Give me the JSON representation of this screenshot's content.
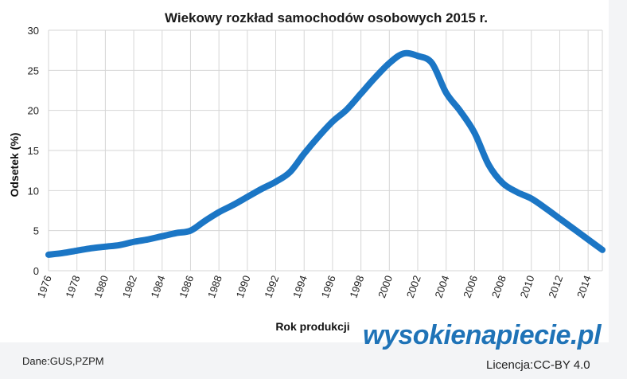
{
  "source_text": "Dane:GUS,PZPM",
  "license_text": "Licencja:CC-BY 4.0",
  "brand_text": "wysokienapiecie.pl",
  "colors": {
    "line": "#1b76c5",
    "grid": "#d6d6d6",
    "brand": "#1f73b7"
  },
  "chart_data": {
    "type": "line",
    "title": "Wiekowy rozkład samochodów osobowych 2015 r.",
    "xlabel": "Rok produkcji",
    "ylabel": "Odsetek (%)",
    "xlim": [
      1976,
      2015
    ],
    "ylim": [
      0,
      30
    ],
    "x_ticks": [
      "1976",
      "1978",
      "1980",
      "1982",
      "1984",
      "1986",
      "1988",
      "1990",
      "1992",
      "1994",
      "1996",
      "1998",
      "2000",
      "2002",
      "2004",
      "2006",
      "2008",
      "2010",
      "2012",
      "2014"
    ],
    "y_ticks": [
      "0",
      "5",
      "10",
      "15",
      "20",
      "25",
      "30"
    ],
    "grid": true,
    "legend": "none",
    "series": [
      {
        "x": [
          1976,
          1977,
          1978,
          1979,
          1980,
          1981,
          1982,
          1983,
          1984,
          1985,
          1986,
          1987,
          1988,
          1989,
          1990,
          1991,
          1992,
          1993,
          1994,
          1995,
          1996,
          1997,
          1998,
          1999,
          2000,
          2001,
          2002,
          2003,
          2004,
          2005,
          2006,
          2007,
          2008,
          2009,
          2010,
          2011,
          2012,
          2013,
          2014,
          2015
        ],
        "values": [
          2.0,
          2.2,
          2.5,
          2.8,
          3.0,
          3.2,
          3.6,
          3.9,
          4.3,
          4.7,
          5.0,
          6.2,
          7.3,
          8.2,
          9.2,
          10.2,
          11.1,
          12.3,
          14.6,
          16.7,
          18.6,
          20.1,
          22.1,
          24.1,
          25.9,
          27.1,
          26.8,
          25.9,
          22.2,
          19.9,
          17.2,
          13.2,
          10.9,
          9.8,
          9.0,
          7.8,
          6.5,
          5.2,
          3.9,
          2.6
        ]
      }
    ]
  }
}
